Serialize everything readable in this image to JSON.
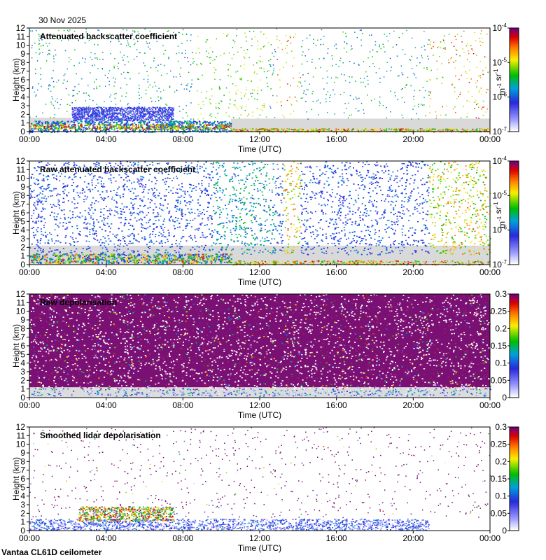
{
  "date": "30 Nov 2025",
  "footer": "Vantaa CL61D ceilometer",
  "chart_data": [
    {
      "type": "heatmap",
      "title": "Attenuated backscatter coefficient",
      "xlabel": "Time (UTC)",
      "ylabel": "Height (km)",
      "x_ticks": [
        "00:00",
        "04:00",
        "08:00",
        "12:00",
        "16:00",
        "20:00",
        "00:00"
      ],
      "y_ticks": [
        "0",
        "1",
        "2",
        "3",
        "4",
        "5",
        "6",
        "7",
        "8",
        "9",
        "10",
        "11",
        "12"
      ],
      "ylim": [
        0,
        12
      ],
      "colorbar": {
        "scale": "log",
        "range": [
          1e-07,
          0.0001
        ],
        "ticks": [
          "10",
          "10",
          "10",
          "10"
        ],
        "tick_exponents": [
          "-7",
          "-6",
          "-5",
          "-4"
        ],
        "unit_base": [
          "m",
          "sr"
        ],
        "unit_exponents": [
          "-1",
          "-1"
        ]
      },
      "features": [
        "near-surface layer 0-1.5 km all day",
        "aerosol/cloud signal 2-3 km 02:00-07:30",
        "scattered high-altitude noise with higher values 13:00-14:00 and 21:00-24:00",
        "grey no-data region 12:00-24:00 below 1.5 km"
      ]
    },
    {
      "type": "heatmap",
      "title": "Raw attenuated backscatter coefficient",
      "xlabel": "Time (UTC)",
      "ylabel": "Height (km)",
      "x_ticks": [
        "00:00",
        "04:00",
        "08:00",
        "12:00",
        "16:00",
        "20:00",
        "00:00"
      ],
      "y_ticks": [
        "0",
        "1",
        "2",
        "3",
        "4",
        "5",
        "6",
        "7",
        "8",
        "9",
        "10",
        "11",
        "12"
      ],
      "ylim": [
        0,
        12
      ],
      "colorbar": {
        "scale": "log",
        "range": [
          1e-07,
          0.0001
        ],
        "ticks": [
          "10",
          "10",
          "10",
          "10"
        ],
        "tick_exponents": [
          "-7",
          "-6",
          "-5",
          "-4"
        ],
        "unit_base": [
          "m",
          "sr"
        ],
        "unit_exponents": [
          "-1",
          "-1"
        ]
      },
      "features": [
        "dense blue noise over full height",
        "green/yellow noise 13:00-14:00 and 21:00-24:00",
        "grey region below 2-3 km"
      ]
    },
    {
      "type": "heatmap",
      "title": "Raw depolarisation",
      "xlabel": "Time (UTC)",
      "ylabel": "Height (km)",
      "x_ticks": [
        "00:00",
        "04:00",
        "08:00",
        "12:00",
        "16:00",
        "20:00",
        "00:00"
      ],
      "y_ticks": [
        "0",
        "1",
        "2",
        "3",
        "4",
        "5",
        "6",
        "7",
        "8",
        "9",
        "10",
        "11",
        "12"
      ],
      "ylim": [
        0,
        12
      ],
      "colorbar": {
        "scale": "linear",
        "range": [
          0,
          0.3
        ],
        "ticks": [
          "0",
          "0.05",
          "0.1",
          "0.15",
          "0.2",
          "0.25",
          "0.3"
        ]
      },
      "features": [
        "dense purple/white noise above ~1 km",
        "near-surface boundary layer below 1 km"
      ]
    },
    {
      "type": "heatmap",
      "title": "Smoothed lidar depolarisation",
      "xlabel": "Time (UTC)",
      "ylabel": "Height (km)",
      "x_ticks": [
        "00:00",
        "04:00",
        "08:00",
        "12:00",
        "16:00",
        "20:00",
        "00:00"
      ],
      "y_ticks": [
        "0",
        "1",
        "2",
        "3",
        "4",
        "5",
        "6",
        "7",
        "8",
        "9",
        "10",
        "11",
        "12"
      ],
      "ylim": [
        0,
        12
      ],
      "colorbar": {
        "scale": "linear",
        "range": [
          0,
          0.3
        ],
        "ticks": [
          "0",
          "0.05",
          "0.1",
          "0.15",
          "0.2",
          "0.25",
          "0.3"
        ]
      },
      "features": [
        "boundary layer 0-1.5 km",
        "elevated layer ~2-3 km 02:00-07:30",
        "sparse purple speckle aloft"
      ]
    }
  ]
}
